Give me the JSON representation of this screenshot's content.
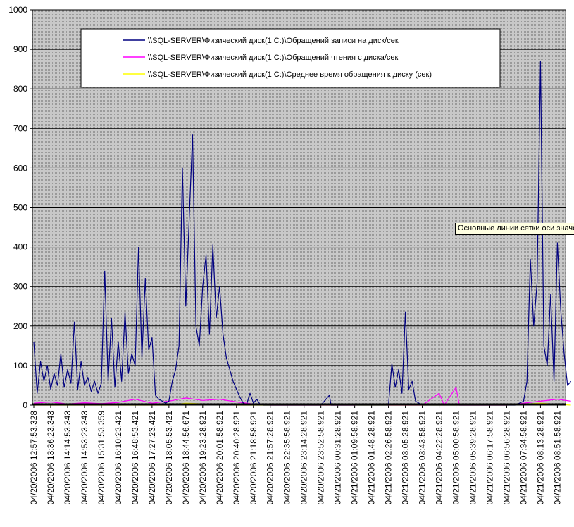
{
  "chart_data": {
    "type": "line",
    "title": "",
    "xlabel": "",
    "ylabel": "",
    "ylim": [
      0,
      1000
    ],
    "y_ticks": [
      0,
      100,
      200,
      300,
      400,
      500,
      600,
      700,
      800,
      900,
      1000
    ],
    "grid": true,
    "legend_position": "top",
    "x_tick_labels": [
      "04/20/2006 12:57:53.328",
      "04/20/2006 13:36:23.343",
      "04/20/2006 14:14:53.343",
      "04/20/2006 14:53:23.343",
      "04/20/2006 15:31:53.359",
      "04/20/2006 16:10:23.421",
      "04/20/2006 16:48:53.421",
      "04/20/2006 17:27:23.421",
      "04/20/2006 18:05:53.421",
      "04/20/2006 18:44:56.671",
      "04/20/2006 19:23:28.921",
      "04/20/2006 20:01:58.921",
      "04/20/2006 20:40:28.921",
      "04/20/2006 21:18:58.921",
      "04/20/2006 21:57:28.921",
      "04/20/2006 22:35:58.921",
      "04/20/2006 23:14:28.921",
      "04/20/2006 23:52:58.921",
      "04/21/2006 00:31:28.921",
      "04/21/2006 01:09:58.921",
      "04/21/2006 01:48:28.921",
      "04/21/2006 02:26:58.921",
      "04/21/2006 03:05:28.921",
      "04/21/2006 03:43:58.921",
      "04/21/2006 04:22:28.921",
      "04/21/2006 05:00:58.921",
      "04/21/2006 05:39:28.921",
      "04/21/2006 06:17:58.921",
      "04/21/2006 06:56:28.921",
      "04/21/2006 07:34:58.921",
      "04/21/2006 08:13:28.921",
      "04/21/2006 08:51:58.921"
    ],
    "series": [
      {
        "name": "\\\\SQL-SERVER\\Физический диск(1 C:)\\Обращений записи на диск/сек",
        "color": "#000080",
        "points": [
          [
            0,
            160
          ],
          [
            0.2,
            30
          ],
          [
            0.4,
            110
          ],
          [
            0.6,
            60
          ],
          [
            0.8,
            100
          ],
          [
            1,
            40
          ],
          [
            1.2,
            80
          ],
          [
            1.4,
            50
          ],
          [
            1.6,
            130
          ],
          [
            1.8,
            45
          ],
          [
            2,
            90
          ],
          [
            2.2,
            55
          ],
          [
            2.4,
            210
          ],
          [
            2.6,
            40
          ],
          [
            2.8,
            110
          ],
          [
            3,
            50
          ],
          [
            3.2,
            70
          ],
          [
            3.4,
            35
          ],
          [
            3.6,
            60
          ],
          [
            3.8,
            30
          ],
          [
            4,
            55
          ],
          [
            4.2,
            340
          ],
          [
            4.4,
            60
          ],
          [
            4.6,
            220
          ],
          [
            4.8,
            45
          ],
          [
            5,
            160
          ],
          [
            5.2,
            60
          ],
          [
            5.4,
            235
          ],
          [
            5.6,
            80
          ],
          [
            5.8,
            130
          ],
          [
            6,
            100
          ],
          [
            6.2,
            400
          ],
          [
            6.4,
            120
          ],
          [
            6.6,
            320
          ],
          [
            6.8,
            140
          ],
          [
            7,
            170
          ],
          [
            7.2,
            25
          ],
          [
            7.4,
            15
          ],
          [
            7.6,
            10
          ],
          [
            7.8,
            5
          ],
          [
            8,
            10
          ],
          [
            8.2,
            60
          ],
          [
            8.4,
            90
          ],
          [
            8.6,
            150
          ],
          [
            8.8,
            600
          ],
          [
            9,
            250
          ],
          [
            9.2,
            470
          ],
          [
            9.4,
            685
          ],
          [
            9.6,
            200
          ],
          [
            9.8,
            150
          ],
          [
            10,
            300
          ],
          [
            10.2,
            380
          ],
          [
            10.4,
            180
          ],
          [
            10.6,
            405
          ],
          [
            10.8,
            220
          ],
          [
            11,
            300
          ],
          [
            11.2,
            180
          ],
          [
            11.4,
            120
          ],
          [
            11.6,
            90
          ],
          [
            11.8,
            60
          ],
          [
            12,
            40
          ],
          [
            12.2,
            20
          ],
          [
            12.4,
            5
          ],
          [
            12.6,
            2
          ],
          [
            12.8,
            30
          ],
          [
            13,
            5
          ],
          [
            13.2,
            15
          ],
          [
            13.4,
            2
          ],
          [
            13.6,
            0
          ],
          [
            14,
            0
          ],
          [
            14.5,
            0
          ],
          [
            15,
            0
          ],
          [
            15.5,
            0
          ],
          [
            16,
            0
          ],
          [
            16.5,
            0
          ],
          [
            17,
            0
          ],
          [
            17.5,
            25
          ],
          [
            17.6,
            0
          ],
          [
            18,
            0
          ],
          [
            18.5,
            0
          ],
          [
            19,
            0
          ],
          [
            19.5,
            0
          ],
          [
            20,
            0
          ],
          [
            20.5,
            0
          ],
          [
            21,
            0
          ],
          [
            21.2,
            105
          ],
          [
            21.4,
            45
          ],
          [
            21.6,
            90
          ],
          [
            21.8,
            30
          ],
          [
            22,
            235
          ],
          [
            22.2,
            40
          ],
          [
            22.4,
            60
          ],
          [
            22.6,
            10
          ],
          [
            22.8,
            5
          ],
          [
            23,
            0
          ],
          [
            23.5,
            0
          ],
          [
            24,
            0
          ],
          [
            24.5,
            0
          ],
          [
            25,
            0
          ],
          [
            25.5,
            0
          ],
          [
            26,
            0
          ],
          [
            26.5,
            0
          ],
          [
            27,
            0
          ],
          [
            27.5,
            0
          ],
          [
            28,
            0
          ],
          [
            28.5,
            0
          ],
          [
            29,
            10
          ],
          [
            29.2,
            60
          ],
          [
            29.4,
            370
          ],
          [
            29.6,
            200
          ],
          [
            29.8,
            310
          ],
          [
            30,
            870
          ],
          [
            30.2,
            150
          ],
          [
            30.4,
            100
          ],
          [
            30.6,
            280
          ],
          [
            30.8,
            60
          ],
          [
            31,
            410
          ],
          [
            31.2,
            240
          ],
          [
            31.4,
            130
          ],
          [
            31.6,
            50
          ],
          [
            31.8,
            60
          ]
        ]
      },
      {
        "name": "\\\\SQL-SERVER\\Физический диск(1 C:)\\Обращений чтения с диска/сек",
        "color": "#ff00ff",
        "points": [
          [
            0,
            5
          ],
          [
            1,
            8
          ],
          [
            2,
            3
          ],
          [
            3,
            6
          ],
          [
            4,
            4
          ],
          [
            5,
            7
          ],
          [
            6,
            15
          ],
          [
            7,
            5
          ],
          [
            8,
            10
          ],
          [
            9,
            18
          ],
          [
            10,
            12
          ],
          [
            11,
            15
          ],
          [
            12,
            8
          ],
          [
            13,
            3
          ],
          [
            14,
            0
          ],
          [
            15,
            0
          ],
          [
            16,
            0
          ],
          [
            17,
            0
          ],
          [
            18,
            0
          ],
          [
            19,
            0
          ],
          [
            20,
            2
          ],
          [
            21,
            0
          ],
          [
            22,
            0
          ],
          [
            23,
            0
          ],
          [
            24,
            30
          ],
          [
            24.3,
            0
          ],
          [
            25,
            45
          ],
          [
            25.2,
            0
          ],
          [
            26,
            0
          ],
          [
            27,
            0
          ],
          [
            28,
            0
          ],
          [
            29,
            5
          ],
          [
            30,
            10
          ],
          [
            31,
            15
          ],
          [
            31.8,
            10
          ]
        ]
      },
      {
        "name": "\\\\SQL-SERVER\\Физический диск(1 C:)\\Среднее время обращения к диску (сек)",
        "color": "#ffff00",
        "points": [
          [
            0,
            0
          ],
          [
            4,
            0
          ],
          [
            8,
            0
          ],
          [
            9,
            5
          ],
          [
            12,
            0
          ],
          [
            16,
            0
          ],
          [
            20,
            0
          ],
          [
            24,
            0
          ],
          [
            28,
            0
          ],
          [
            30,
            5
          ],
          [
            31.8,
            0
          ]
        ]
      }
    ]
  },
  "tooltip": "Основные линии сетки оси значений"
}
